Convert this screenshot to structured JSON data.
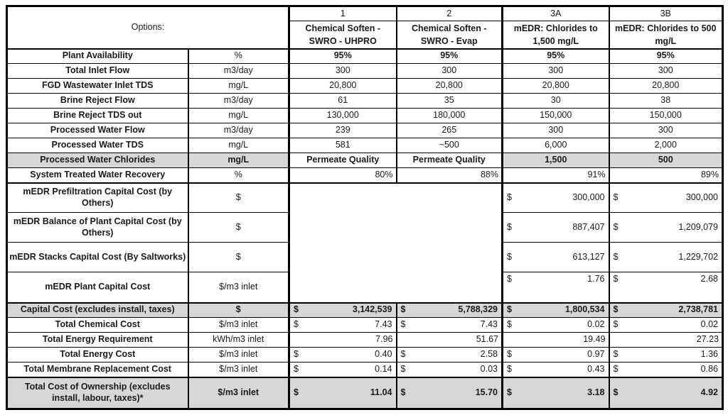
{
  "money_symbol": "$",
  "colors": {
    "row_shading": "#d7d7d7",
    "border": "#000000",
    "text": "#1a1a1a"
  },
  "header": {
    "corner": "Options:",
    "options": [
      {
        "num": "1",
        "line1": "Chemical Soften -",
        "line2": "SWRO - UHPRO"
      },
      {
        "num": "2",
        "line1": "Chemical Soften -",
        "line2": "SWRO - Evap"
      },
      {
        "num": "3A",
        "line1": "mEDR: Chlorides to",
        "line2": "1,500 mg/L"
      },
      {
        "num": "3B",
        "line1": "mEDR: Chlorides to 500",
        "line2": "mg/L"
      }
    ]
  },
  "rows": [
    {
      "label": "Plant Availability",
      "unit": "%",
      "values": [
        "95%",
        "95%",
        "95%",
        "95%"
      ]
    },
    {
      "label": "Total Inlet Flow",
      "unit": "m3/day",
      "values": [
        "300",
        "300",
        "300",
        "300"
      ]
    },
    {
      "label": "FGD Wastewater Inlet TDS",
      "unit": "mg/L",
      "values": [
        "20,800",
        "20,800",
        "20,800",
        "20,800"
      ]
    },
    {
      "label": "Brine Reject Flow",
      "unit": "m3/day",
      "values": [
        "61",
        "35",
        "30",
        "38"
      ]
    },
    {
      "label": "Brine Reject TDS out",
      "unit": "mg/L",
      "values": [
        "130,000",
        "180,000",
        "150,000",
        "150,000"
      ]
    },
    {
      "label": "Processed Water Flow",
      "unit": "m3/day",
      "values": [
        "239",
        "265",
        "300",
        "300"
      ]
    },
    {
      "label": "Processed Water TDS",
      "unit": "mg/L",
      "values": [
        "581",
        "~500",
        "6,000",
        "2,000"
      ]
    },
    {
      "label": "Processed Water Chlorides",
      "unit": "mg/L",
      "values": [
        "Permeate Quality",
        "Permeate Quality",
        "1,500",
        "500"
      ]
    },
    {
      "label": "System Treated Water Recovery",
      "unit": "%",
      "values": [
        "80%",
        "88%",
        "91%",
        "89%"
      ]
    },
    {
      "label": "mEDR Prefiltration Capital Cost (by Others)",
      "unit": "$",
      "values": [
        "300,000",
        "300,000"
      ]
    },
    {
      "label": "mEDR Balance of Plant Capital Cost (by Others)",
      "unit": "$",
      "values": [
        "887,407",
        "1,209,079"
      ]
    },
    {
      "label": "mEDR Stacks Capital Cost (By Saltworks)",
      "unit": "$",
      "values": [
        "613,127",
        "1,229,702"
      ]
    },
    {
      "label": "mEDR Plant Capital Cost",
      "unit": "$/m3 inlet",
      "values": [
        "1.76",
        "2.68"
      ]
    },
    {
      "label": "Capital Cost (excludes install, taxes)",
      "unit": "$",
      "values": [
        "3,142,539",
        "5,788,329",
        "1,800,534",
        "2,738,781"
      ]
    },
    {
      "label": "Total Chemical Cost",
      "unit": "$/m3 inlet",
      "values": [
        "7.43",
        "7.43",
        "0.02",
        "0.02"
      ]
    },
    {
      "label": "Total Energy Requirement",
      "unit": "kWh/m3 inlet",
      "values": [
        "7.96",
        "51.67",
        "19.49",
        "27.23"
      ]
    },
    {
      "label": "Total Energy Cost",
      "unit": "$/m3 inlet",
      "values": [
        "0.40",
        "2.58",
        "0.97",
        "1.36"
      ]
    },
    {
      "label": "Total Membrane Replacement Cost",
      "unit": "$/m3 inlet",
      "values": [
        "0.14",
        "0.03",
        "0.43",
        "0.86"
      ]
    },
    {
      "label": "Total Cost of Ownership (excludes install, labour, taxes)*",
      "unit": "$/m3 inlet",
      "values": [
        "11.04",
        "15.70",
        "3.18",
        "4.92"
      ]
    }
  ]
}
